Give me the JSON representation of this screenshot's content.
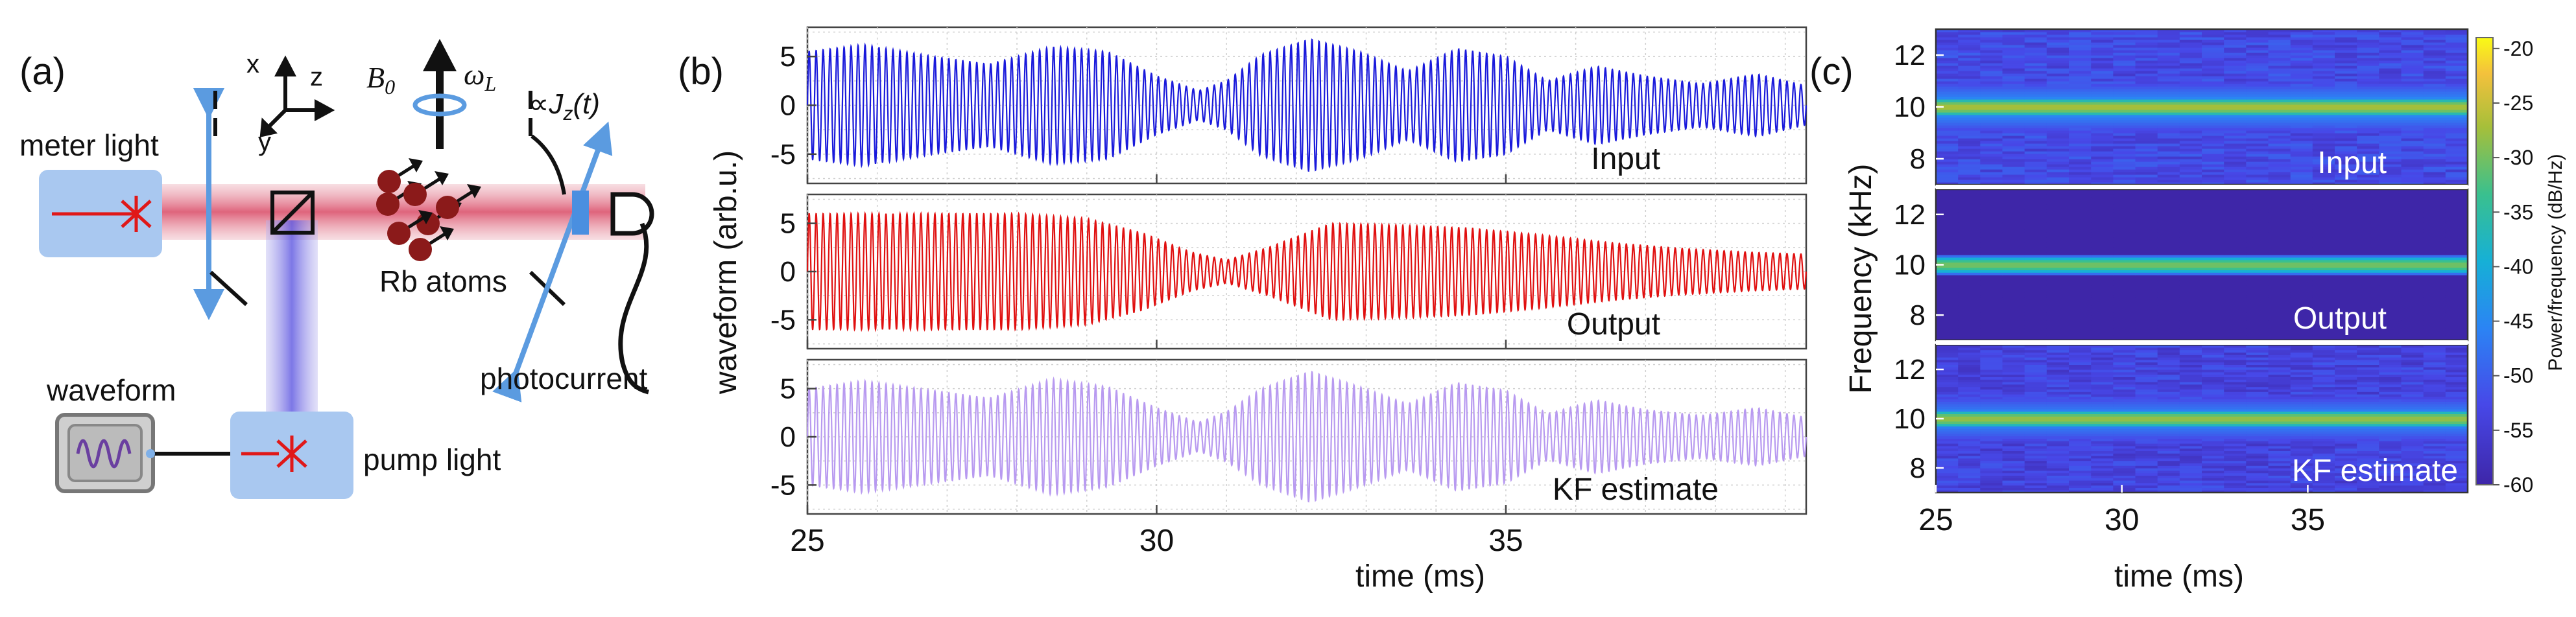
{
  "figure": {
    "panel_a": {
      "label": "(a)",
      "meter_light": "meter light",
      "axis_x": "x",
      "axis_y": "y",
      "axis_z": "z",
      "b_field": "B",
      "b_field_sub": "0",
      "omega": "ω",
      "omega_sub": "L",
      "proportional": "∝J",
      "proportional_sub": "z",
      "proportional_tail": "(t)",
      "rb_atoms": "Rb atoms",
      "photocurrent": "photocurrent",
      "waveform": "waveform",
      "pump_light": "pump light"
    },
    "panel_b": {
      "label": "(b)"
    },
    "panel_c": {
      "label": "(c)"
    }
  },
  "chart_data": [
    {
      "type": "line",
      "panel": "(b)",
      "xlabel": "time (ms)",
      "ylabel": "waveform (arb.u.)",
      "xlim": [
        25,
        39.3
      ],
      "x_ticks": [
        "25",
        "30",
        "35"
      ],
      "y_ticks": [
        "5",
        "0",
        "-5"
      ],
      "grid": true,
      "carrier_khz": 10,
      "series": [
        {
          "name": "Input",
          "color": "#1a1adb",
          "ylim": [
            -8,
            8
          ],
          "envelope_t": [
            25,
            25.8,
            26.8,
            27.6,
            28.5,
            29.3,
            30.0,
            30.6,
            31.0,
            31.5,
            32.2,
            32.9,
            33.6,
            34.3,
            35.0,
            35.6,
            36.3,
            37.0,
            37.8,
            38.6,
            39.3
          ],
          "envelope": [
            5.5,
            6.2,
            5.0,
            4.2,
            6.0,
            5.5,
            3.0,
            1.5,
            2.5,
            5.2,
            6.8,
            5.5,
            3.5,
            5.8,
            5.0,
            2.5,
            4.0,
            3.0,
            2.2,
            3.2,
            2.0
          ]
        },
        {
          "name": "Output",
          "color": "#e01010",
          "ylim": [
            -8,
            8
          ],
          "envelope_t": [
            25,
            26.5,
            28.0,
            29.0,
            29.8,
            30.5,
            31.0,
            31.6,
            32.5,
            33.5,
            34.5,
            35.5,
            36.5,
            37.5,
            38.5,
            39.3
          ],
          "envelope": [
            6.0,
            6.0,
            6.0,
            5.5,
            4.0,
            2.0,
            1.2,
            2.5,
            5.0,
            4.8,
            4.5,
            3.8,
            3.0,
            2.4,
            2.0,
            1.8
          ]
        },
        {
          "name": "KF estimate",
          "color": "#b89af0",
          "ylim": [
            -8,
            8
          ],
          "envelope_t": [
            25,
            25.8,
            26.8,
            27.6,
            28.5,
            29.3,
            30.0,
            30.6,
            31.0,
            31.5,
            32.2,
            32.9,
            33.6,
            34.3,
            35.0,
            35.6,
            36.3,
            37.0,
            37.8,
            38.6,
            39.3
          ],
          "envelope": [
            5.0,
            5.8,
            4.8,
            4.0,
            6.0,
            5.2,
            3.0,
            1.5,
            2.6,
            5.0,
            6.8,
            5.2,
            3.4,
            5.6,
            4.8,
            2.4,
            3.8,
            2.8,
            2.2,
            3.0,
            2.0
          ]
        }
      ]
    },
    {
      "type": "heatmap",
      "panel": "(c)",
      "xlabel": "time (ms)",
      "ylabel": "Frequency (kHz)",
      "xlim": [
        25,
        39.3
      ],
      "x_ticks": [
        "25",
        "30",
        "35"
      ],
      "ylim": [
        7,
        13
      ],
      "y_ticks": [
        "12",
        "10",
        "8"
      ],
      "colorbar_label": "Power/frequency (dB/Hz)",
      "colorbar_ticks": [
        "-20",
        "-25",
        "-30",
        "-35",
        "-40",
        "-45",
        "-50",
        "-55",
        "-60"
      ],
      "colorbar_range": [
        -60,
        -19
      ],
      "rows": [
        {
          "name": "Input",
          "peak_khz": 10.0,
          "peak_db": -27,
          "noise_db": -54
        },
        {
          "name": "Output",
          "peak_khz": 10.0,
          "peak_db": -30,
          "noise_db": -60
        },
        {
          "name": "KF estimate",
          "peak_khz": 10.0,
          "peak_db": -28,
          "noise_db": -55
        }
      ]
    }
  ]
}
